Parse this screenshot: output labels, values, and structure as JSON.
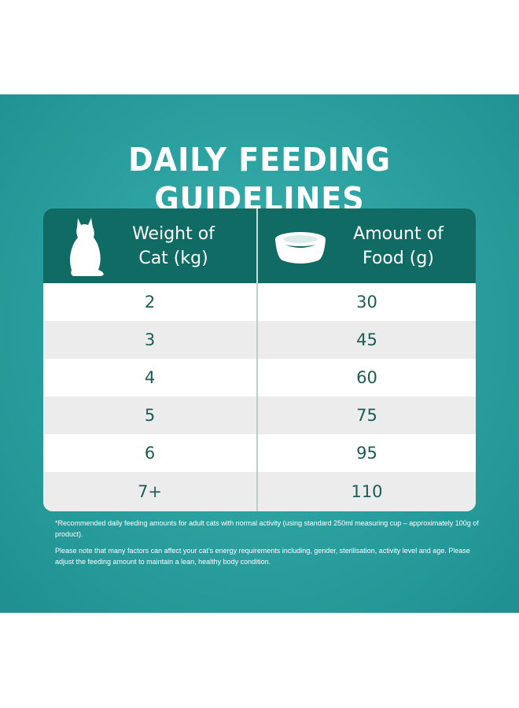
{
  "title": "DAILY FEEDING GUIDELINES",
  "colors": {
    "panel_teal": "#2ca2a1",
    "header_dark_teal": "#0f6b63",
    "row_text": "#1a5d56",
    "row_alt": "#ececec"
  },
  "icons": {
    "weight_column": "cat-silhouette-icon",
    "food_column": "food-bowl-icon"
  },
  "table": {
    "headers": {
      "weight": [
        "Weight of",
        "Cat (kg)"
      ],
      "amount": [
        "Amount of",
        "Food (g)"
      ]
    },
    "rows": [
      {
        "weight": "2",
        "amount": "30"
      },
      {
        "weight": "3",
        "amount": "45"
      },
      {
        "weight": "4",
        "amount": "60"
      },
      {
        "weight": "5",
        "amount": "75"
      },
      {
        "weight": "6",
        "amount": "95"
      },
      {
        "weight": "7+",
        "amount": "110"
      }
    ]
  },
  "notes": {
    "footnote": "*Recommended daily feeding amounts for adult cats with normal activity (using standard 250ml measuring cup – approximately 100g of product).",
    "advice": "Please note that many factors can affect your cat's energy requirements including, gender, sterilisation, activity level and age. Please adjust the feeding amount to maintain a lean, healthy body condition."
  }
}
